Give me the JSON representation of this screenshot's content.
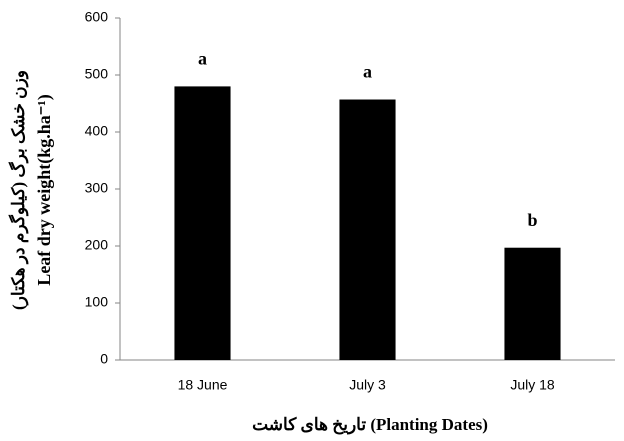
{
  "chart_data": {
    "type": "bar",
    "y_label_fa": "وزن خشک برگ (کیلوگرم در هکتار)",
    "y_label": "Leaf dry weight(kg.ha⁻¹)",
    "x_label": "تاریخ های کاشت (Planting Dates)",
    "categories": [
      "18 June",
      "July 3",
      "July 18"
    ],
    "values": [
      480,
      457,
      197
    ],
    "annotations": [
      "a",
      "a",
      "b"
    ],
    "color": "#000000",
    "ylim": [
      0,
      600
    ],
    "yticks": [
      0,
      100,
      200,
      300,
      400,
      500,
      600
    ],
    "grid": false
  }
}
